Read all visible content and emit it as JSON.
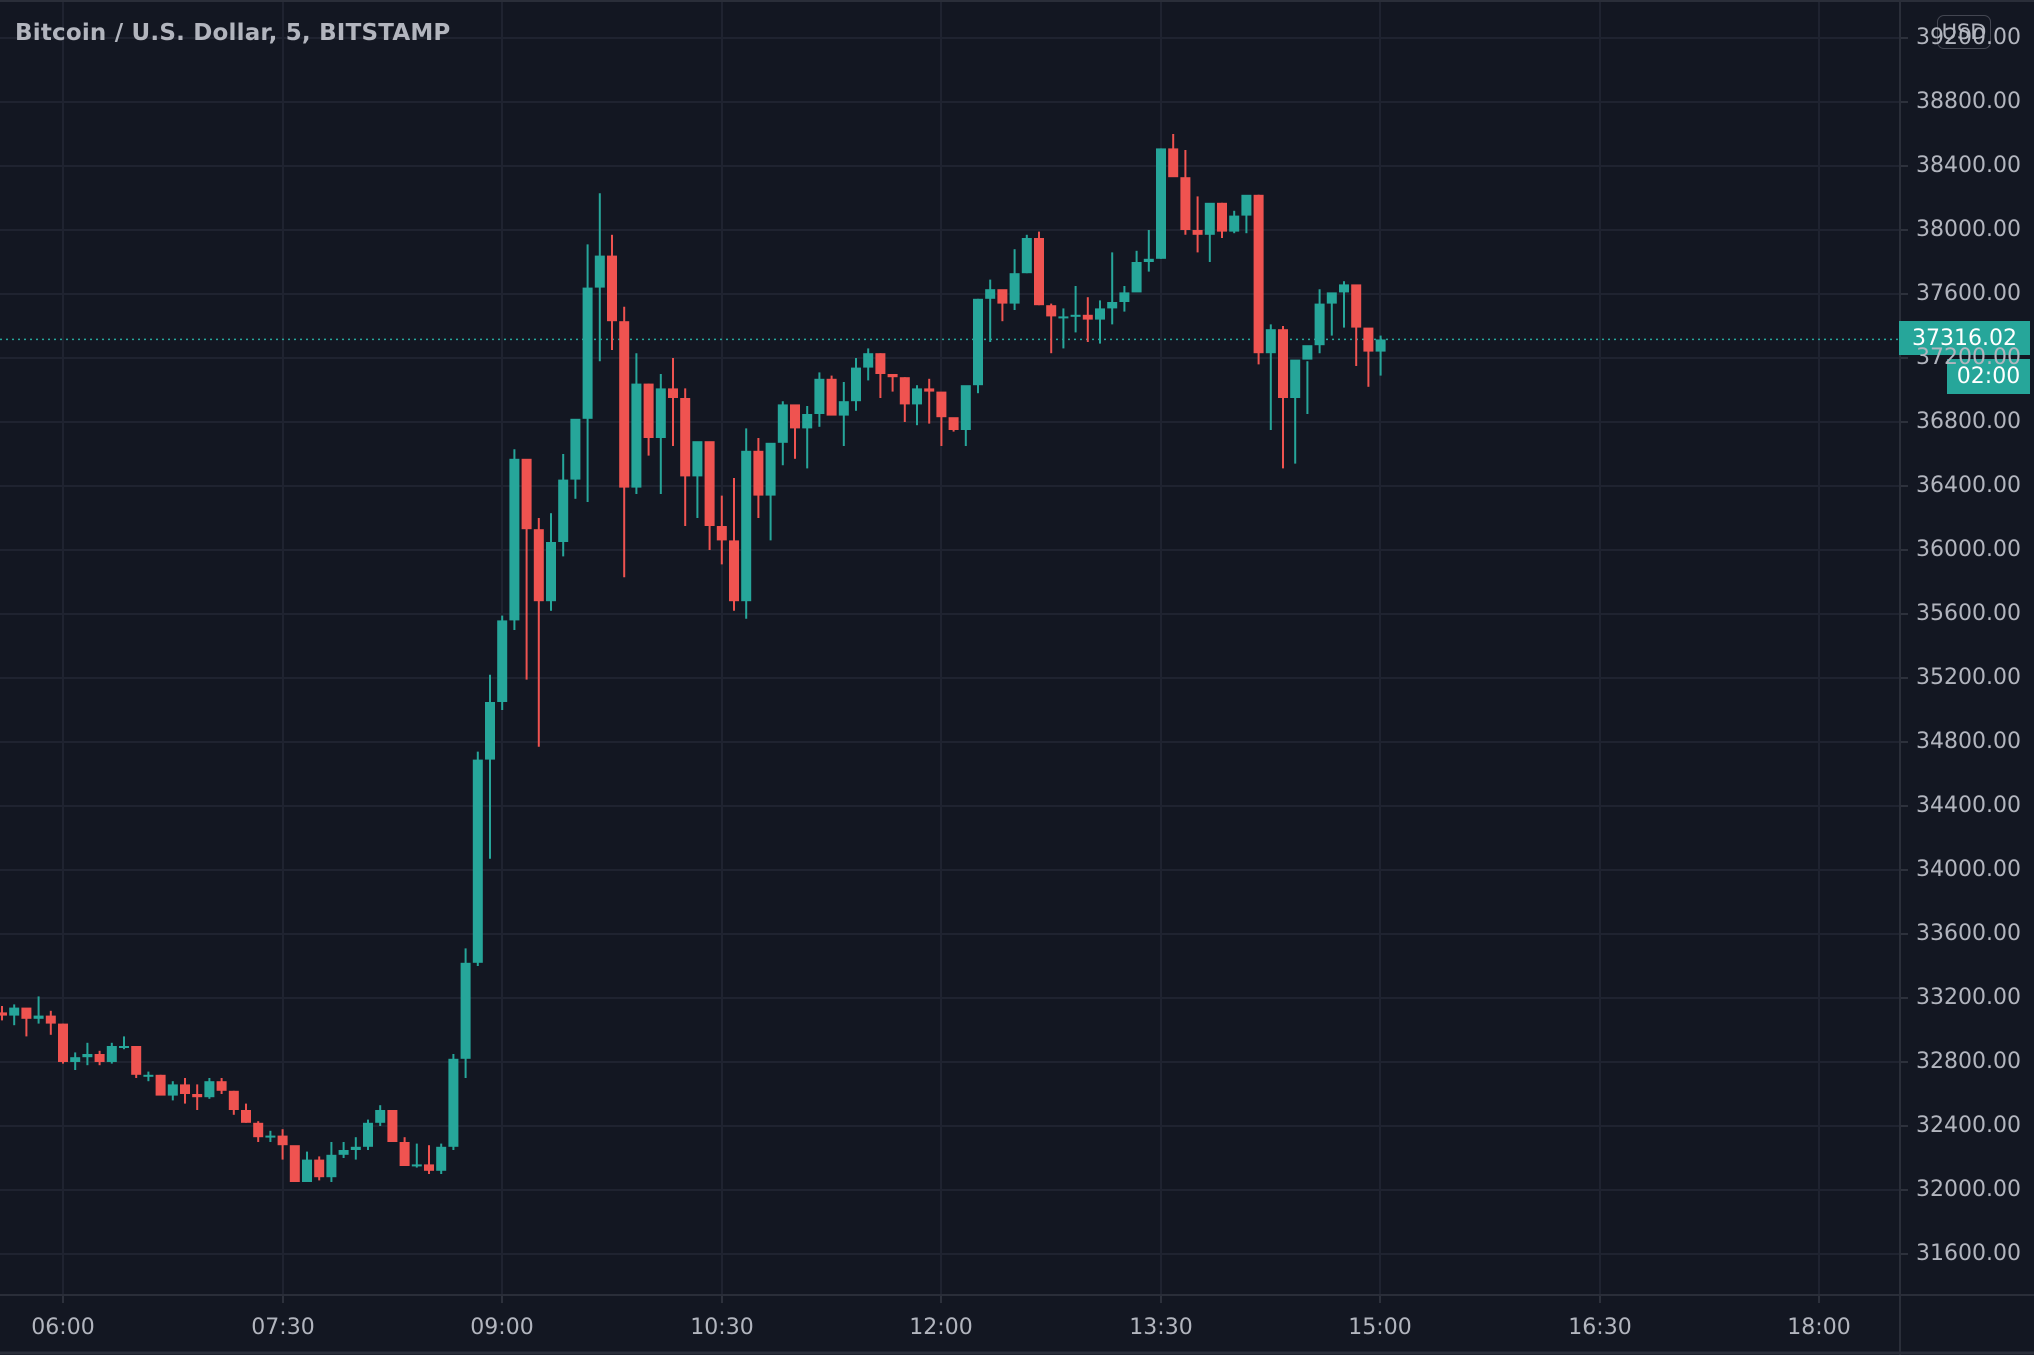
{
  "header": {
    "title": "Bitcoin / U.S. Dollar, 5, BITSTAMP",
    "currency_button": "USD"
  },
  "last_price": {
    "value": "37316.02",
    "countdown": "02:00",
    "color": "#26a69a"
  },
  "colors": {
    "background": "#131722",
    "grid": "#1f2330",
    "up": "#26a69a",
    "down": "#ef5350",
    "axis_text": "#b2b5be"
  },
  "chart_data": {
    "type": "candlestick",
    "title": "Bitcoin / U.S. Dollar, 5, BITSTAMP",
    "interval": "5",
    "exchange": "BITSTAMP",
    "xlabel": "",
    "ylabel": "USD",
    "ylim": [
      31400,
      39300
    ],
    "y_ticks": [
      "39200.00",
      "38800.00",
      "38400.00",
      "38000.00",
      "37600.00",
      "37200.00",
      "36800.00",
      "36400.00",
      "36000.00",
      "35600.00",
      "35200.00",
      "34800.00",
      "34400.00",
      "34000.00",
      "33600.00",
      "33200.00",
      "32800.00",
      "32400.00",
      "32000.00",
      "31600.00"
    ],
    "x_ticks": [
      "06:00",
      "07:30",
      "09:00",
      "10:30",
      "12:00",
      "13:30",
      "15:00",
      "16:30",
      "18:00"
    ],
    "grid": true,
    "last_price": 37316.02,
    "candles": [
      [
        33110,
        33150,
        33060,
        33090
      ],
      [
        33090,
        33160,
        33030,
        33140
      ],
      [
        33140,
        33120,
        32960,
        33070
      ],
      [
        33070,
        33210,
        33040,
        33090
      ],
      [
        33090,
        33120,
        32970,
        33040
      ],
      [
        33040,
        33040,
        32790,
        32800
      ],
      [
        32800,
        32860,
        32750,
        32830
      ],
      [
        32830,
        32920,
        32780,
        32850
      ],
      [
        32850,
        32870,
        32780,
        32800
      ],
      [
        32800,
        32920,
        32790,
        32900
      ],
      [
        32900,
        32960,
        32880,
        32900
      ],
      [
        32900,
        32900,
        32700,
        32720
      ],
      [
        32720,
        32740,
        32680,
        32720
      ],
      [
        32720,
        32720,
        32600,
        32590
      ],
      [
        32590,
        32680,
        32560,
        32660
      ],
      [
        32660,
        32700,
        32540,
        32600
      ],
      [
        32600,
        32660,
        32500,
        32580
      ],
      [
        32580,
        32700,
        32570,
        32680
      ],
      [
        32680,
        32700,
        32600,
        32620
      ],
      [
        32620,
        32620,
        32470,
        32500
      ],
      [
        32500,
        32540,
        32420,
        32420
      ],
      [
        32420,
        32430,
        32300,
        32330
      ],
      [
        32330,
        32370,
        32300,
        32340
      ],
      [
        32340,
        32380,
        32190,
        32280
      ],
      [
        32280,
        32260,
        32060,
        32050
      ],
      [
        32050,
        32240,
        32050,
        32190
      ],
      [
        32190,
        32210,
        32060,
        32080
      ],
      [
        32080,
        32300,
        32050,
        32220
      ],
      [
        32220,
        32300,
        32200,
        32250
      ],
      [
        32250,
        32330,
        32190,
        32270
      ],
      [
        32270,
        32440,
        32250,
        32420
      ],
      [
        32420,
        32530,
        32400,
        32500
      ],
      [
        32500,
        32480,
        32300,
        32300
      ],
      [
        32300,
        32330,
        32160,
        32150
      ],
      [
        32150,
        32290,
        32140,
        32160
      ],
      [
        32160,
        32280,
        32100,
        32120
      ],
      [
        32120,
        32290,
        32100,
        32270
      ],
      [
        32270,
        32850,
        32250,
        32820
      ],
      [
        32820,
        33510,
        32700,
        33420
      ],
      [
        33420,
        34740,
        33400,
        34690
      ],
      [
        34690,
        35220,
        34070,
        35050
      ],
      [
        35050,
        35590,
        35000,
        35560
      ],
      [
        35560,
        36630,
        35500,
        36570
      ],
      [
        36570,
        36510,
        35190,
        36130
      ],
      [
        36130,
        36200,
        34770,
        35680
      ],
      [
        35680,
        36230,
        35620,
        36050
      ],
      [
        36050,
        36600,
        35960,
        36440
      ],
      [
        36440,
        36700,
        36320,
        36820
      ],
      [
        36820,
        37910,
        36300,
        37640
      ],
      [
        37640,
        38230,
        37180,
        37840
      ],
      [
        37840,
        37970,
        37250,
        37430
      ],
      [
        37430,
        37520,
        35830,
        36390
      ],
      [
        36390,
        37230,
        36350,
        37040
      ],
      [
        37040,
        37040,
        36590,
        36700
      ],
      [
        36700,
        37100,
        36350,
        37010
      ],
      [
        37010,
        37200,
        36650,
        36950
      ],
      [
        36950,
        37010,
        36150,
        36460
      ],
      [
        36460,
        36660,
        36200,
        36680
      ],
      [
        36680,
        36610,
        36000,
        36150
      ],
      [
        36150,
        36340,
        35910,
        36060
      ],
      [
        36060,
        36450,
        35620,
        35680
      ],
      [
        35680,
        36760,
        35570,
        36620
      ],
      [
        36620,
        36700,
        36200,
        36340
      ],
      [
        36340,
        36470,
        36060,
        36670
      ],
      [
        36670,
        36930,
        36530,
        36910
      ],
      [
        36910,
        36880,
        36570,
        36760
      ],
      [
        36760,
        36900,
        36510,
        36850
      ],
      [
        36850,
        37110,
        36770,
        37070
      ],
      [
        37070,
        37090,
        36850,
        36840
      ],
      [
        36840,
        37050,
        36650,
        36930
      ],
      [
        36930,
        37200,
        36870,
        37140
      ],
      [
        37140,
        37260,
        37060,
        37230
      ],
      [
        37230,
        37230,
        36950,
        37100
      ],
      [
        37100,
        37100,
        36990,
        37080
      ],
      [
        37080,
        37080,
        36800,
        36910
      ],
      [
        36910,
        37030,
        36780,
        37010
      ],
      [
        37010,
        37070,
        36790,
        36990
      ],
      [
        36990,
        36970,
        36650,
        36830
      ],
      [
        36830,
        36810,
        36740,
        36750
      ],
      [
        36750,
        37020,
        36650,
        37030
      ],
      [
        37030,
        37570,
        36980,
        37570
      ],
      [
        37570,
        37690,
        37300,
        37630
      ],
      [
        37630,
        37580,
        37430,
        37540
      ],
      [
        37540,
        37880,
        37500,
        37730
      ],
      [
        37730,
        37970,
        37730,
        37950
      ],
      [
        37950,
        37990,
        37530,
        37530
      ],
      [
        37530,
        37540,
        37230,
        37460
      ],
      [
        37460,
        37510,
        37260,
        37460
      ],
      [
        37460,
        37650,
        37360,
        37470
      ],
      [
        37470,
        37580,
        37300,
        37440
      ],
      [
        37440,
        37560,
        37290,
        37510
      ],
      [
        37510,
        37860,
        37410,
        37550
      ],
      [
        37550,
        37650,
        37490,
        37610
      ],
      [
        37610,
        37870,
        37620,
        37800
      ],
      [
        37800,
        38000,
        37740,
        37820
      ],
      [
        37820,
        38510,
        37820,
        38510
      ],
      [
        38510,
        38600,
        38360,
        38330
      ],
      [
        38330,
        38500,
        37970,
        38000
      ],
      [
        38000,
        38210,
        37860,
        37970
      ],
      [
        37970,
        38120,
        37800,
        38170
      ],
      [
        38170,
        38170,
        37950,
        37990
      ],
      [
        37990,
        38120,
        37980,
        38090
      ],
      [
        38090,
        38210,
        37980,
        38220
      ],
      [
        38220,
        38220,
        37160,
        37230
      ],
      [
        37230,
        37410,
        36750,
        37380
      ],
      [
        37380,
        37400,
        36510,
        36950
      ],
      [
        36950,
        37180,
        36540,
        37190
      ],
      [
        37190,
        37180,
        36850,
        37280
      ],
      [
        37280,
        37630,
        37230,
        37540
      ],
      [
        37540,
        37590,
        37340,
        37610
      ],
      [
        37610,
        37680,
        37390,
        37660
      ],
      [
        37660,
        37640,
        37150,
        37390
      ],
      [
        37390,
        37340,
        37020,
        37240
      ],
      [
        37240,
        37340,
        37090,
        37316
      ]
    ]
  }
}
